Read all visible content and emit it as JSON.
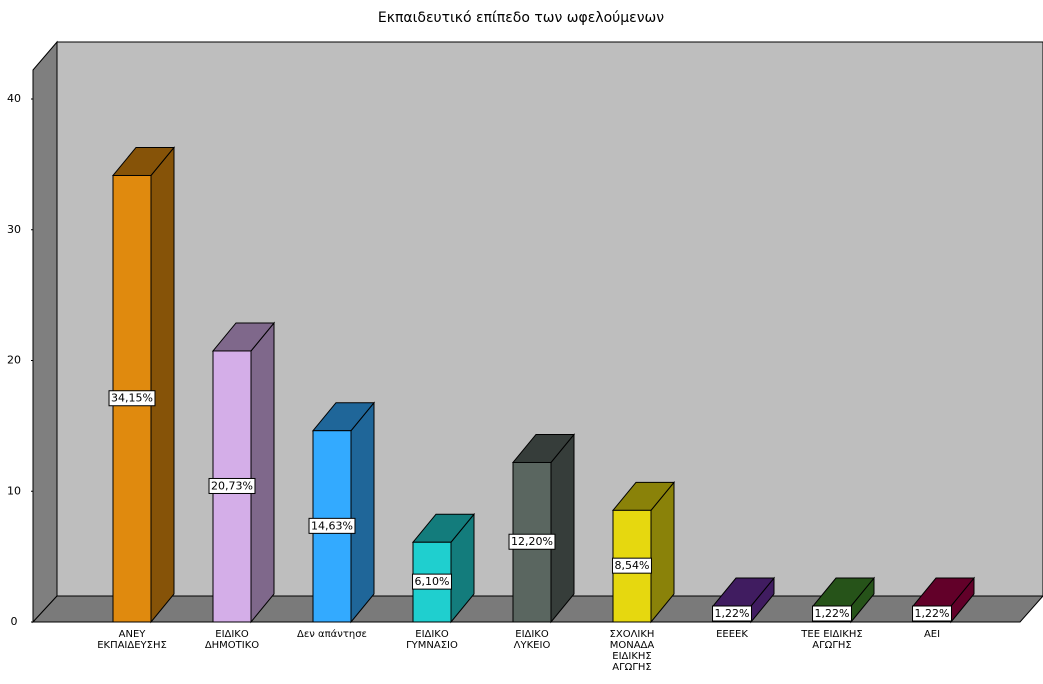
{
  "chart_data": {
    "type": "bar3d",
    "title": "Εκπαιδευτικό επίπεδο των ωφελούμενων",
    "categories": [
      "ΑΝΕΥ\nΕΚΠΑΙΔΕΥΣΗΣ",
      "ΕΙΔΙΚΟ\nΔΗΜΟΤΙΚΟ",
      "Δεν απάντησε",
      "ΕΙΔΙΚΟ\nΓΥΜΝΑΣΙΟ",
      "ΕΙΔΙΚΟ\nΛΥΚΕΙΟ",
      "ΣΧΟΛΙΚΗ\nΜΟΝΑΔΑ\nΕΙΔΙΚΗΣ\nΑΓΩΓΗΣ",
      "ΕΕΕΕΚ",
      "ΤΕΕ ΕΙΔΙΚΗΣ\nΑΓΩΓΗΣ",
      "ΑΕΙ"
    ],
    "values": [
      34.15,
      20.73,
      14.63,
      6.1,
      12.2,
      8.54,
      1.22,
      1.22,
      1.22
    ],
    "value_labels": [
      "34,15%",
      "20,73%",
      "14,63%",
      "6,10%",
      "12,20%",
      "8,54%",
      "1,22%",
      "1,22%",
      "1,22%"
    ],
    "colors": [
      "#e08a0e",
      "#d4aee8",
      "#33aaff",
      "#1fcfcf",
      "#5a6660",
      "#e6d80f",
      "#6a2fa0",
      "#3f8a2a",
      "#a30044"
    ],
    "ylim": [
      0,
      40
    ],
    "yticks": [
      0,
      10,
      20,
      30,
      40
    ]
  }
}
